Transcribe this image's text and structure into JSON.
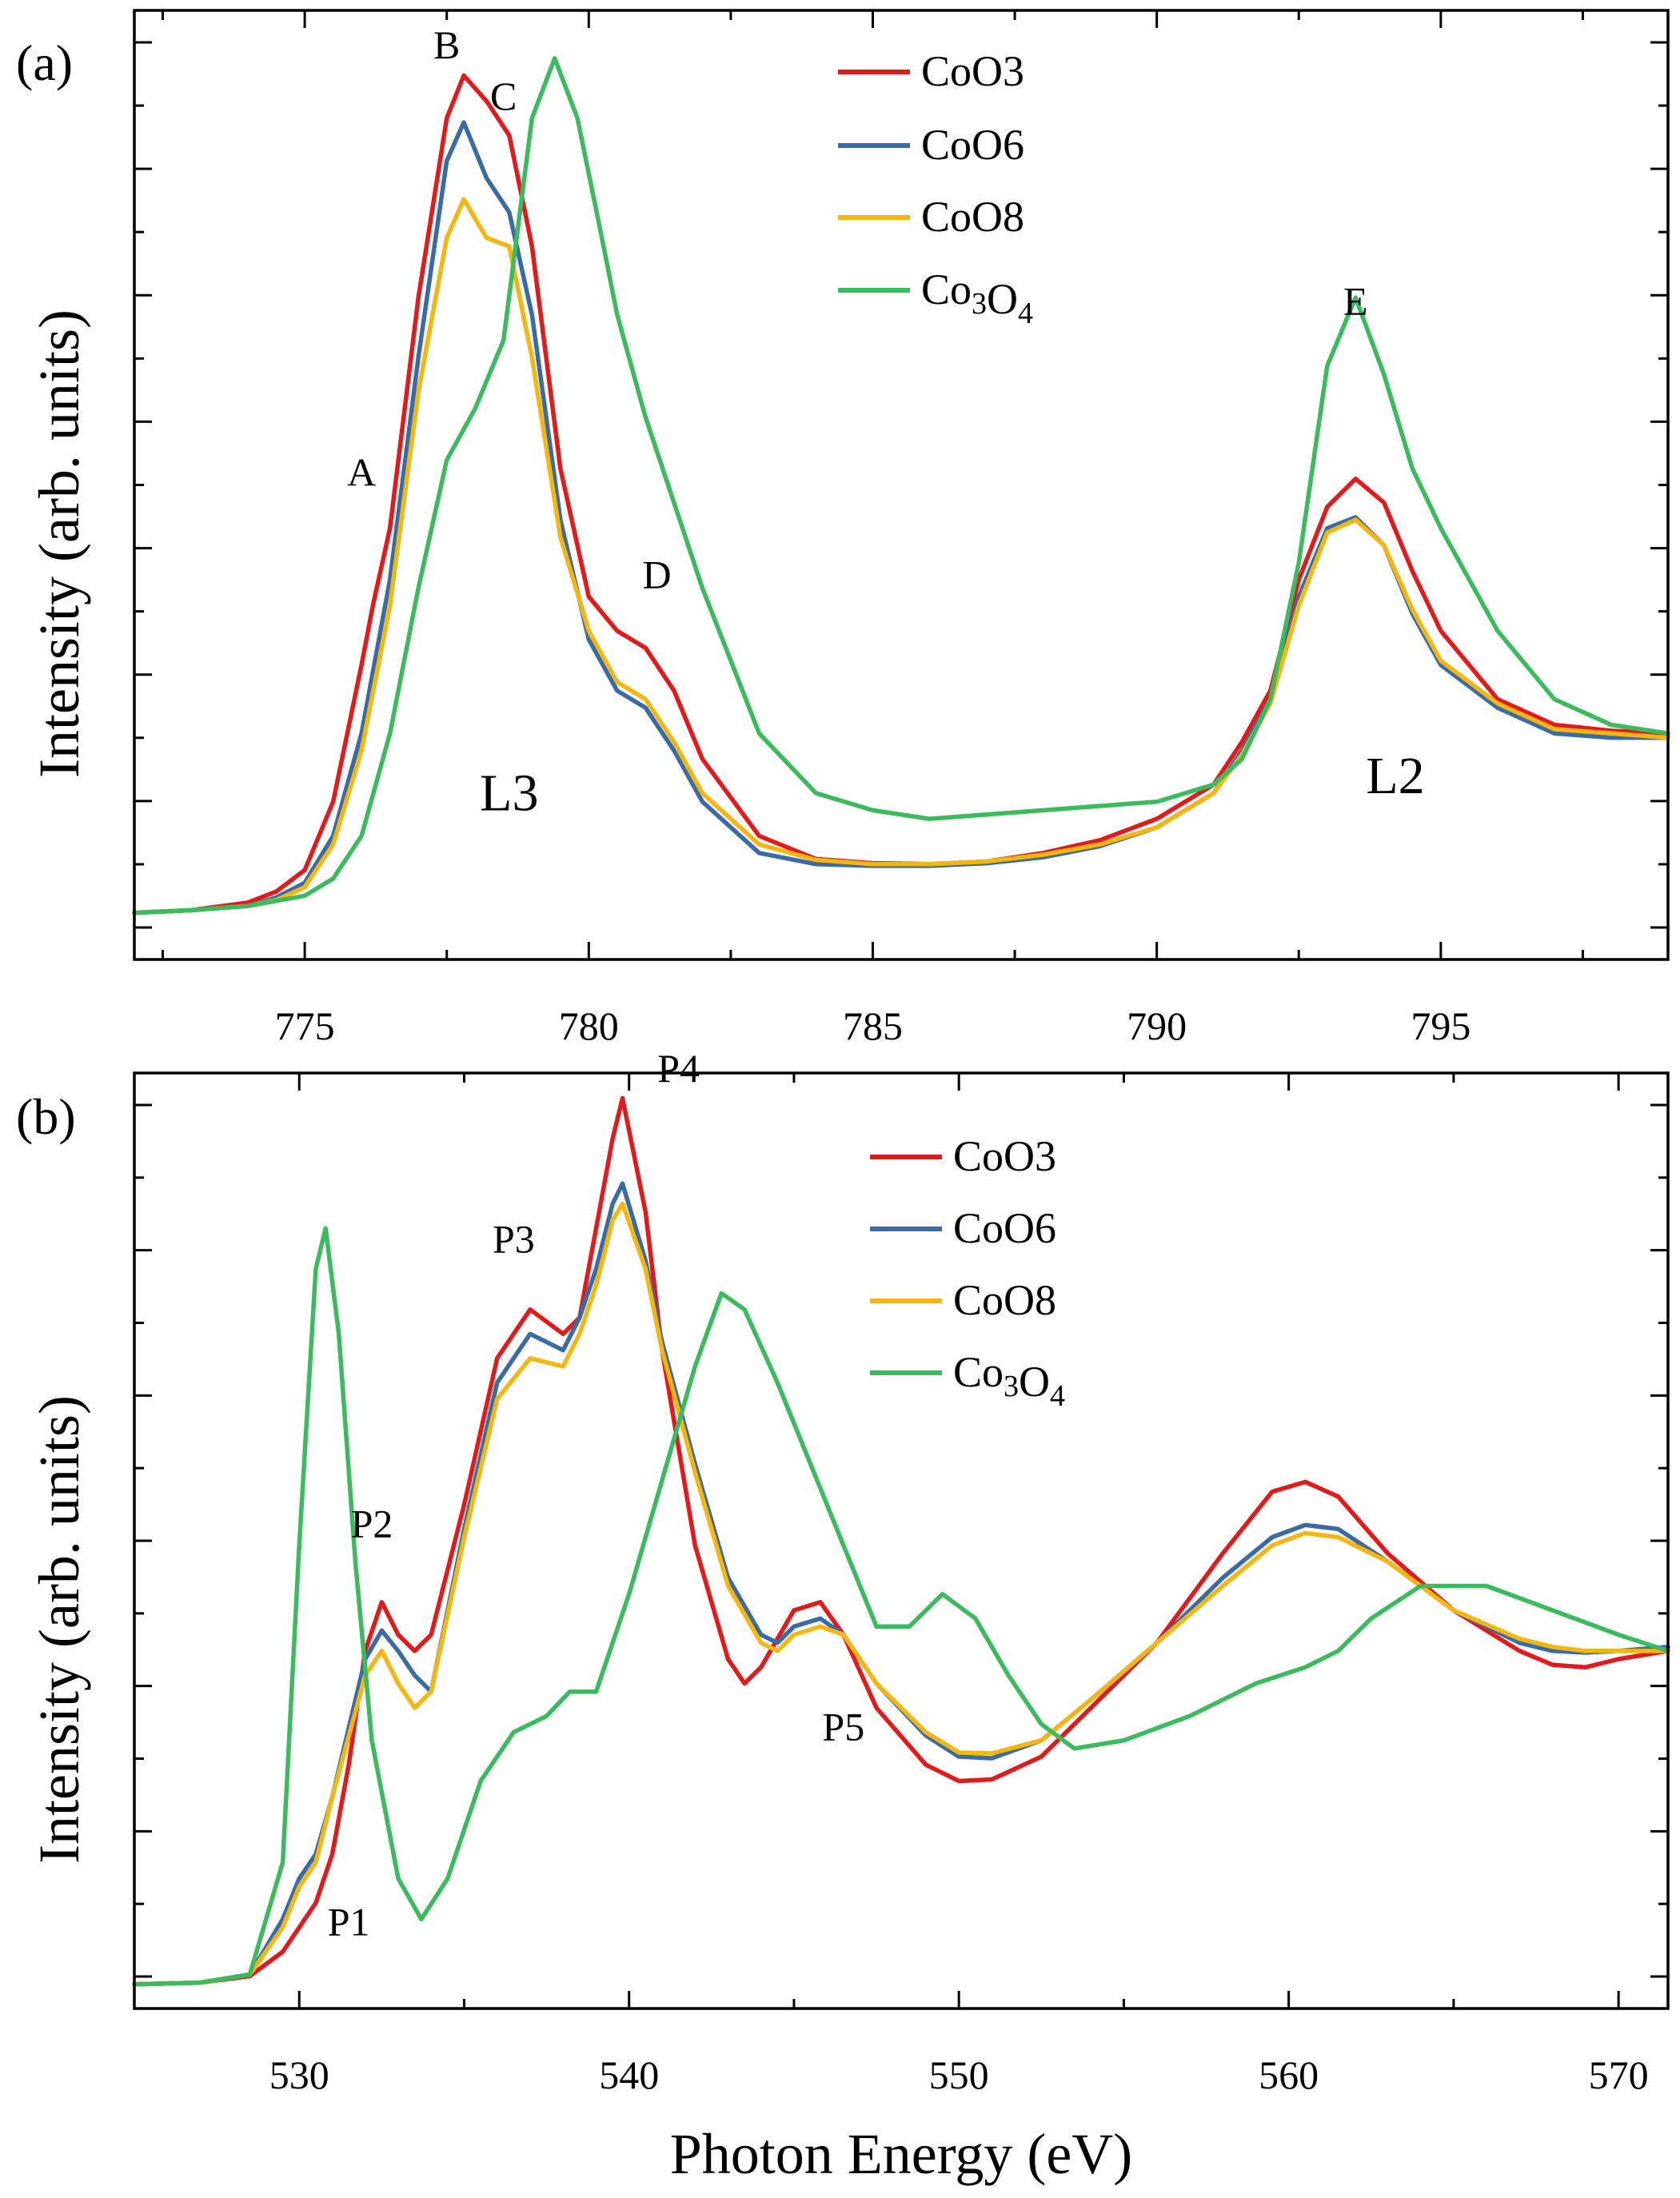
{
  "chart_data": [
    {
      "panel_label": "(a)",
      "type": "line",
      "title": "",
      "xlabel": "",
      "ylabel": "Intensity (arb. units)",
      "xlim": [
        772,
        799
      ],
      "ylim": [
        -0.02,
        1.0
      ],
      "xticks": [
        775,
        780,
        785,
        790,
        795
      ],
      "ytick_labels_shown": false,
      "grid": false,
      "legend_position": "top-center",
      "series": [
        {
          "name": "CoO3",
          "color": "#e31a1c",
          "x": [
            772,
            773,
            774,
            774.5,
            775,
            775.5,
            776,
            776.2,
            776.5,
            777,
            777.5,
            777.8,
            778.2,
            778.6,
            779,
            779.5,
            780,
            780.5,
            781,
            781.5,
            782,
            783,
            784,
            785,
            786,
            787,
            788,
            789,
            790,
            791,
            791.5,
            792,
            792.5,
            793,
            793.5,
            794,
            794.5,
            795,
            796,
            797,
            798,
            799
          ],
          "y": [
            0,
            0.003,
            0.012,
            0.025,
            0.05,
            0.13,
            0.29,
            0.36,
            0.45,
            0.72,
            0.93,
            0.98,
            0.95,
            0.91,
            0.78,
            0.52,
            0.37,
            0.33,
            0.31,
            0.26,
            0.18,
            0.09,
            0.063,
            0.058,
            0.057,
            0.06,
            0.07,
            0.085,
            0.11,
            0.15,
            0.2,
            0.26,
            0.39,
            0.475,
            0.508,
            0.48,
            0.4,
            0.33,
            0.25,
            0.22,
            0.213,
            0.21
          ]
        },
        {
          "name": "CoO6",
          "color": "#3b6ba5",
          "x": [
            772,
            773,
            774,
            774.5,
            775,
            775.5,
            776,
            776.5,
            777,
            777.5,
            777.8,
            778.2,
            778.6,
            779,
            779.5,
            780,
            780.5,
            781,
            781.5,
            782,
            783,
            784,
            785,
            786,
            787,
            788,
            789,
            790,
            791,
            791.5,
            792,
            792.5,
            793,
            793.5,
            794,
            794.5,
            795,
            796,
            797,
            798,
            799
          ],
          "y": [
            0,
            0.003,
            0.008,
            0.018,
            0.035,
            0.09,
            0.21,
            0.39,
            0.65,
            0.88,
            0.925,
            0.86,
            0.82,
            0.7,
            0.46,
            0.32,
            0.26,
            0.24,
            0.19,
            0.13,
            0.07,
            0.057,
            0.055,
            0.055,
            0.058,
            0.065,
            0.078,
            0.1,
            0.14,
            0.19,
            0.25,
            0.37,
            0.45,
            0.463,
            0.43,
            0.35,
            0.29,
            0.24,
            0.21,
            0.205,
            0.205
          ]
        },
        {
          "name": "CoO8",
          "color": "#f5b70f",
          "x": [
            772,
            773,
            774,
            774.5,
            775,
            775.5,
            776,
            776.5,
            777,
            777.5,
            777.8,
            778.2,
            778.6,
            779,
            779.5,
            780,
            780.5,
            781,
            781.5,
            782,
            783,
            784,
            785,
            786,
            787,
            788,
            789,
            790,
            791,
            791.5,
            792,
            792.5,
            793,
            793.5,
            794,
            794.5,
            795,
            796,
            797,
            798,
            799
          ],
          "y": [
            0,
            0.003,
            0.008,
            0.015,
            0.03,
            0.08,
            0.19,
            0.36,
            0.61,
            0.79,
            0.835,
            0.79,
            0.78,
            0.65,
            0.44,
            0.33,
            0.27,
            0.25,
            0.2,
            0.14,
            0.08,
            0.062,
            0.057,
            0.057,
            0.06,
            0.068,
            0.08,
            0.1,
            0.14,
            0.185,
            0.245,
            0.36,
            0.445,
            0.46,
            0.43,
            0.355,
            0.295,
            0.245,
            0.215,
            0.21,
            0.205
          ]
        },
        {
          "name": "Co₃O₄",
          "color": "#3cba5e",
          "x": [
            772,
            773,
            774,
            775,
            775.5,
            776,
            776.5,
            777,
            777.5,
            778,
            778.5,
            779,
            779.4,
            779.8,
            780.2,
            780.5,
            781,
            781.5,
            782,
            783,
            784,
            785,
            786,
            787,
            788,
            789,
            790,
            791,
            791.5,
            792,
            792.5,
            793,
            793.5,
            794,
            794.5,
            795,
            796,
            797,
            798,
            799
          ],
          "y": [
            0,
            0.003,
            0.008,
            0.02,
            0.04,
            0.09,
            0.21,
            0.38,
            0.53,
            0.59,
            0.67,
            0.93,
            1.0,
            0.93,
            0.8,
            0.7,
            0.58,
            0.48,
            0.38,
            0.21,
            0.14,
            0.12,
            0.11,
            0.115,
            0.12,
            0.125,
            0.13,
            0.15,
            0.18,
            0.25,
            0.41,
            0.64,
            0.72,
            0.63,
            0.52,
            0.45,
            0.33,
            0.25,
            0.22,
            0.21
          ]
        }
      ],
      "annotations": [
        {
          "text": "A",
          "x": 776,
          "y": 0.5
        },
        {
          "text": "B",
          "x": 777.5,
          "y": 1.0
        },
        {
          "text": "C",
          "x": 778.5,
          "y": 0.94
        },
        {
          "text": "D",
          "x": 781.2,
          "y": 0.38
        },
        {
          "text": "E",
          "x": 793.5,
          "y": 0.7
        },
        {
          "text": "L3",
          "x": 778.6,
          "y": 0.12
        },
        {
          "text": "L2",
          "x": 794.2,
          "y": 0.14
        }
      ]
    },
    {
      "panel_label": "(b)",
      "type": "line",
      "title": "",
      "xlabel": "Photon Energy (eV)",
      "ylabel": "Intensity (arb. units)",
      "xlim": [
        525,
        571.5
      ],
      "ylim": [
        -0.02,
        1.0
      ],
      "xticks": [
        530,
        540,
        550,
        560,
        570
      ],
      "ytick_labels_shown": false,
      "grid": false,
      "legend_position": "top-center",
      "series": [
        {
          "name": "CoO3",
          "color": "#e31a1c",
          "x": [
            525,
            527,
            528.5,
            529.5,
            530.5,
            531,
            531.5,
            532,
            532.5,
            533,
            533.5,
            534,
            535,
            536,
            537,
            538,
            538.5,
            539,
            539.5,
            539.8,
            540.5,
            541,
            542,
            543,
            543.5,
            544,
            545,
            545.8,
            546.5,
            547.5,
            549,
            550,
            551,
            552.5,
            554,
            556,
            558,
            559.5,
            560.5,
            561.5,
            563,
            565,
            567,
            568,
            569,
            570,
            571.5
          ],
          "y": [
            0,
            0.002,
            0.01,
            0.04,
            0.1,
            0.16,
            0.27,
            0.41,
            0.47,
            0.43,
            0.41,
            0.43,
            0.59,
            0.77,
            0.83,
            0.8,
            0.82,
            0.93,
            1.04,
            1.09,
            0.95,
            0.78,
            0.54,
            0.4,
            0.37,
            0.39,
            0.46,
            0.47,
            0.43,
            0.34,
            0.27,
            0.25,
            0.252,
            0.28,
            0.34,
            0.42,
            0.53,
            0.606,
            0.618,
            0.6,
            0.53,
            0.46,
            0.41,
            0.393,
            0.39,
            0.4,
            0.41
          ]
        },
        {
          "name": "CoO6",
          "color": "#3b6ba5",
          "x": [
            525,
            527,
            528.5,
            529.5,
            530,
            530.5,
            531,
            532,
            532.5,
            533,
            533.5,
            534,
            535,
            536,
            537,
            538,
            538.5,
            539,
            539.5,
            539.8,
            540.5,
            541,
            542,
            543,
            544,
            544.5,
            545,
            545.8,
            546.5,
            547.5,
            549,
            550,
            551,
            552.5,
            554,
            556,
            558,
            559.5,
            560.5,
            561.5,
            563,
            565,
            567,
            568,
            569,
            570,
            571.5
          ],
          "y": [
            0,
            0.002,
            0.012,
            0.08,
            0.13,
            0.16,
            0.23,
            0.4,
            0.435,
            0.41,
            0.38,
            0.36,
            0.56,
            0.74,
            0.8,
            0.78,
            0.82,
            0.88,
            0.96,
            0.985,
            0.89,
            0.79,
            0.64,
            0.5,
            0.43,
            0.42,
            0.44,
            0.45,
            0.43,
            0.37,
            0.306,
            0.28,
            0.278,
            0.3,
            0.35,
            0.42,
            0.5,
            0.55,
            0.565,
            0.56,
            0.52,
            0.46,
            0.42,
            0.41,
            0.408,
            0.41,
            0.415
          ]
        },
        {
          "name": "CoO8",
          "color": "#f5b70f",
          "x": [
            525,
            527,
            528.5,
            529.5,
            530,
            530.5,
            531,
            532,
            532.5,
            533,
            533.5,
            534,
            535,
            536,
            537,
            538,
            538.5,
            539,
            539.5,
            539.8,
            540.5,
            541,
            542,
            543,
            544,
            544.5,
            545,
            545.8,
            546.5,
            547.5,
            549,
            550,
            551,
            552.5,
            554,
            556,
            558,
            559.5,
            560.5,
            561.5,
            563,
            565,
            567,
            568,
            569,
            570,
            571.5
          ],
          "y": [
            0,
            0.002,
            0.012,
            0.07,
            0.12,
            0.15,
            0.23,
            0.38,
            0.41,
            0.37,
            0.34,
            0.36,
            0.55,
            0.72,
            0.77,
            0.76,
            0.8,
            0.86,
            0.94,
            0.96,
            0.88,
            0.78,
            0.63,
            0.49,
            0.42,
            0.41,
            0.43,
            0.44,
            0.43,
            0.37,
            0.31,
            0.285,
            0.284,
            0.3,
            0.35,
            0.42,
            0.49,
            0.54,
            0.555,
            0.55,
            0.52,
            0.46,
            0.425,
            0.415,
            0.41,
            0.41,
            0.41
          ]
        },
        {
          "name": "Co₃O₄",
          "color": "#3cba5e",
          "x": [
            525,
            527,
            528.5,
            529.5,
            530,
            530.5,
            530.8,
            531.2,
            531.7,
            532.2,
            533,
            533.7,
            534.5,
            535.5,
            536.5,
            537.5,
            538.2,
            539,
            540,
            541,
            542,
            542.8,
            543.5,
            544.5,
            545.5,
            546.5,
            547.5,
            548.5,
            549.5,
            550.5,
            551.5,
            552.5,
            553.5,
            555,
            557,
            559,
            560.5,
            561.5,
            562.5,
            564,
            566,
            568,
            570,
            571.5
          ],
          "y": [
            0,
            0.002,
            0.012,
            0.15,
            0.54,
            0.88,
            0.93,
            0.8,
            0.52,
            0.3,
            0.13,
            0.08,
            0.13,
            0.25,
            0.31,
            0.33,
            0.36,
            0.36,
            0.48,
            0.62,
            0.76,
            0.85,
            0.83,
            0.74,
            0.64,
            0.54,
            0.44,
            0.44,
            0.48,
            0.45,
            0.38,
            0.32,
            0.29,
            0.3,
            0.33,
            0.37,
            0.39,
            0.41,
            0.45,
            0.49,
            0.49,
            0.46,
            0.43,
            0.41
          ]
        }
      ],
      "annotations": [
        {
          "text": "P1",
          "x": 531.5,
          "y": 0.06
        },
        {
          "text": "P2",
          "x": 532.2,
          "y": 0.55
        },
        {
          "text": "P3",
          "x": 536.5,
          "y": 0.9
        },
        {
          "text": "P4",
          "x": 541.5,
          "y": 1.11
        },
        {
          "text": "P5",
          "x": 546.5,
          "y": 0.3
        }
      ]
    }
  ]
}
